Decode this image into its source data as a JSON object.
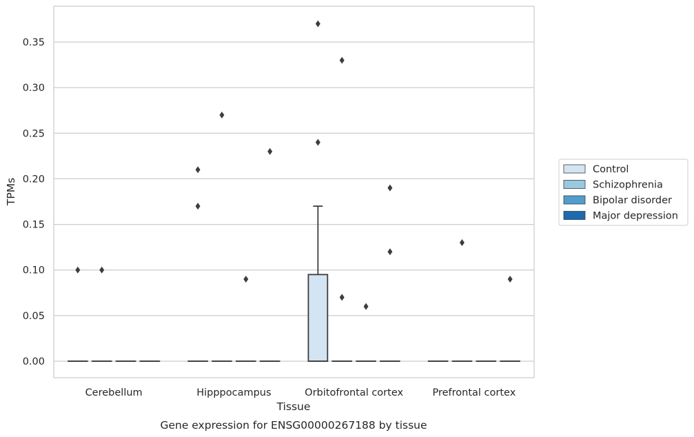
{
  "chart_data": {
    "type": "box",
    "title": "Gene expression for ENSG00000267188 by tissue",
    "xlabel": "Tissue",
    "ylabel": "TPMs",
    "ylim": [
      -0.018,
      0.389
    ],
    "yticks": [
      0.0,
      0.05,
      0.1,
      0.15,
      0.2,
      0.25,
      0.3,
      0.35
    ],
    "ytick_labels": [
      "0.00",
      "0.05",
      "0.10",
      "0.15",
      "0.20",
      "0.25",
      "0.30",
      "0.35"
    ],
    "grid": "horizontal",
    "legend_position": "right",
    "categories": [
      "Cerebellum",
      "Hipppocampus",
      "Orbitofrontal cortex",
      "Prefrontal cortex"
    ],
    "series": [
      {
        "name": "Control",
        "color": "#d3e4f3",
        "boxes": [
          {
            "q1": 0,
            "median": 0,
            "q3": 0,
            "whisker_low": 0,
            "whisker_high": 0,
            "outliers": [
              0.1
            ]
          },
          {
            "q1": 0,
            "median": 0,
            "q3": 0,
            "whisker_low": 0,
            "whisker_high": 0,
            "outliers": [
              0.21,
              0.17
            ]
          },
          {
            "q1": 0,
            "median": 0,
            "q3": 0.095,
            "whisker_low": 0,
            "whisker_high": 0.17,
            "outliers": [
              0.37,
              0.24
            ]
          },
          {
            "q1": 0,
            "median": 0,
            "q3": 0,
            "whisker_low": 0,
            "whisker_high": 0,
            "outliers": []
          }
        ]
      },
      {
        "name": "Schizophrenia",
        "color": "#9ac8e0",
        "boxes": [
          {
            "q1": 0,
            "median": 0,
            "q3": 0,
            "whisker_low": 0,
            "whisker_high": 0,
            "outliers": [
              0.1
            ]
          },
          {
            "q1": 0,
            "median": 0,
            "q3": 0,
            "whisker_low": 0,
            "whisker_high": 0,
            "outliers": [
              0.27
            ]
          },
          {
            "q1": 0,
            "median": 0,
            "q3": 0,
            "whisker_low": 0,
            "whisker_high": 0,
            "outliers": [
              0.33,
              0.07
            ]
          },
          {
            "q1": 0,
            "median": 0,
            "q3": 0,
            "whisker_low": 0,
            "whisker_high": 0,
            "outliers": [
              0.13
            ]
          }
        ]
      },
      {
        "name": "Bipolar disorder",
        "color": "#529dcc",
        "boxes": [
          {
            "q1": 0,
            "median": 0,
            "q3": 0,
            "whisker_low": 0,
            "whisker_high": 0,
            "outliers": []
          },
          {
            "q1": 0,
            "median": 0,
            "q3": 0,
            "whisker_low": 0,
            "whisker_high": 0,
            "outliers": [
              0.09
            ]
          },
          {
            "q1": 0,
            "median": 0,
            "q3": 0,
            "whisker_low": 0,
            "whisker_high": 0,
            "outliers": [
              0.06
            ]
          },
          {
            "q1": 0,
            "median": 0,
            "q3": 0,
            "whisker_low": 0,
            "whisker_high": 0,
            "outliers": []
          }
        ]
      },
      {
        "name": "Major depression",
        "color": "#1c6aaf",
        "boxes": [
          {
            "q1": 0,
            "median": 0,
            "q3": 0,
            "whisker_low": 0,
            "whisker_high": 0,
            "outliers": []
          },
          {
            "q1": 0,
            "median": 0,
            "q3": 0,
            "whisker_low": 0,
            "whisker_high": 0,
            "outliers": [
              0.23
            ]
          },
          {
            "q1": 0,
            "median": 0,
            "q3": 0,
            "whisker_low": 0,
            "whisker_high": 0,
            "outliers": [
              0.19,
              0.12
            ]
          },
          {
            "q1": 0,
            "median": 0,
            "q3": 0,
            "whisker_low": 0,
            "whisker_high": 0,
            "outliers": [
              0.09
            ]
          }
        ]
      }
    ]
  }
}
